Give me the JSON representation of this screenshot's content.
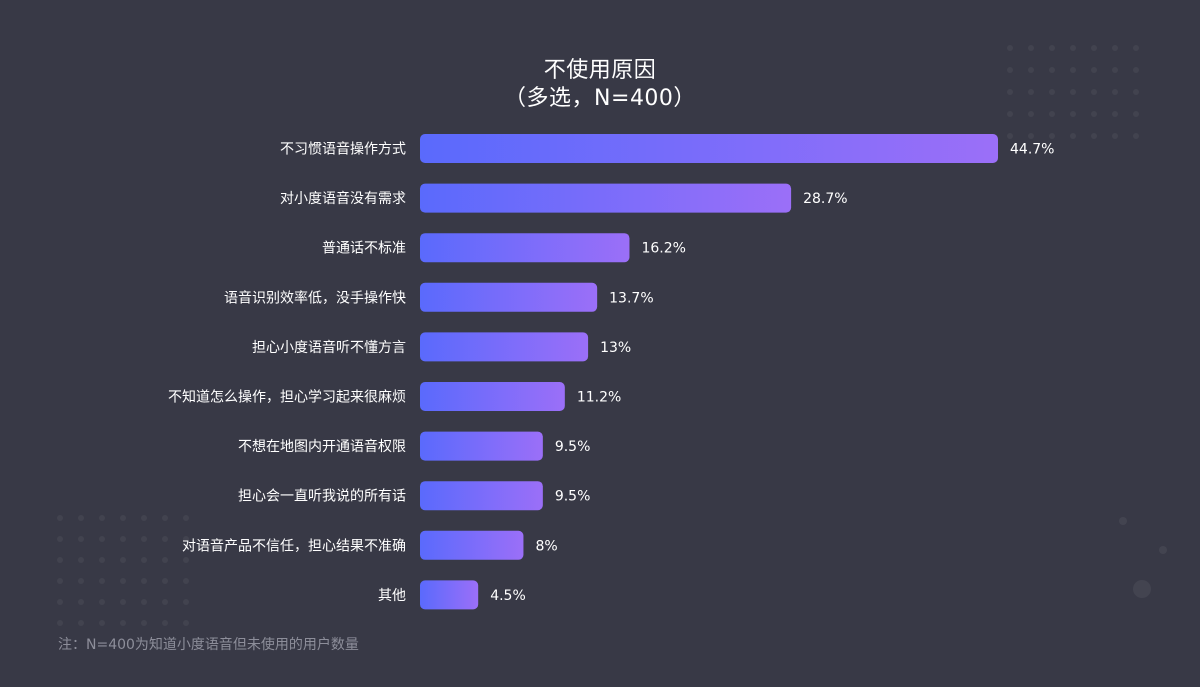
{
  "chart_data": {
    "type": "bar",
    "orientation": "horizontal",
    "title": "不使用原因",
    "subtitle": "（多选，N=400）",
    "categories": [
      "不习惯语音操作方式",
      "对小度语音没有需求",
      "普通话不标准",
      "语音识别效率低，没手操作快",
      "担心小度语音听不懂方言",
      "不知道怎么操作，担心学习起来很麻烦",
      "不想在地图内开通语音权限",
      "担心会一直听我说的所有话",
      "对语音产品不信任，担心结果不准确",
      "其他"
    ],
    "values": [
      44.7,
      28.7,
      16.2,
      13.7,
      13,
      11.2,
      9.5,
      9.5,
      8,
      4.5
    ],
    "value_labels": [
      "44.7%",
      "28.7%",
      "16.2%",
      "13.7%",
      "13%",
      "11.2%",
      "9.5%",
      "9.5%",
      "8%",
      "4.5%"
    ],
    "xlim": [
      0,
      44.7
    ],
    "grid": false,
    "legend": "none",
    "colors": {
      "bar_gradient_start": "#5a6afc",
      "bar_gradient_end": "#9b6ff8",
      "background": "#383946",
      "label_text": "#ffffff",
      "note_text": "#8d8e9a"
    }
  },
  "note": "注：N=400为知道小度语音但未使用的用户数量"
}
